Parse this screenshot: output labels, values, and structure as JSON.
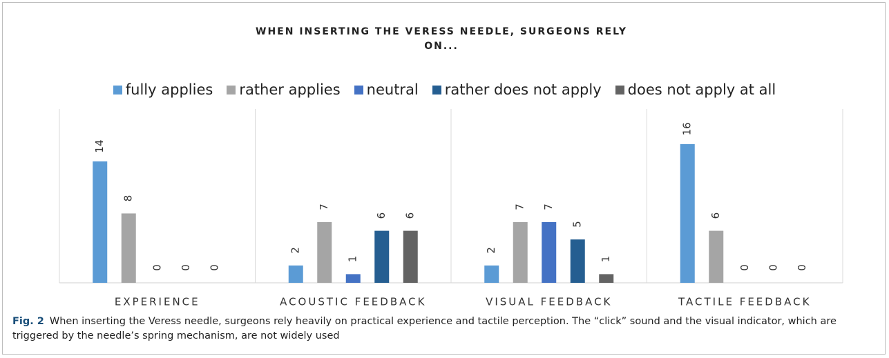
{
  "chart_data": {
    "type": "bar",
    "title": "WHEN INSERTING THE VERESS NEEDLE, SURGEONS RELY ON...",
    "categories": [
      "EXPERIENCE",
      "ACOUSTIC FEEDBACK",
      "VISUAL FEEDBACK",
      "TACTILE FEEDBACK"
    ],
    "series": [
      {
        "name": "fully applies",
        "color": "#5b9bd5",
        "values": [
          14,
          2,
          2,
          16
        ]
      },
      {
        "name": "rather applies",
        "color": "#a5a5a5",
        "values": [
          8,
          7,
          7,
          6
        ]
      },
      {
        "name": "neutral",
        "color": "#4472c4",
        "values": [
          0,
          1,
          7,
          0
        ]
      },
      {
        "name": "rather does not apply",
        "color": "#255e91",
        "values": [
          0,
          6,
          5,
          0
        ]
      },
      {
        "name": "does not apply at all",
        "color": "#636363",
        "values": [
          0,
          6,
          1,
          0
        ]
      }
    ]
  },
  "caption": {
    "label": "Fig. 2",
    "text": "When inserting the Veress needle, surgeons rely heavily on practical experience and tactile perception. The “click” sound and the visual indicator, which are triggered by the needle’s spring mechanism, are not widely used"
  }
}
